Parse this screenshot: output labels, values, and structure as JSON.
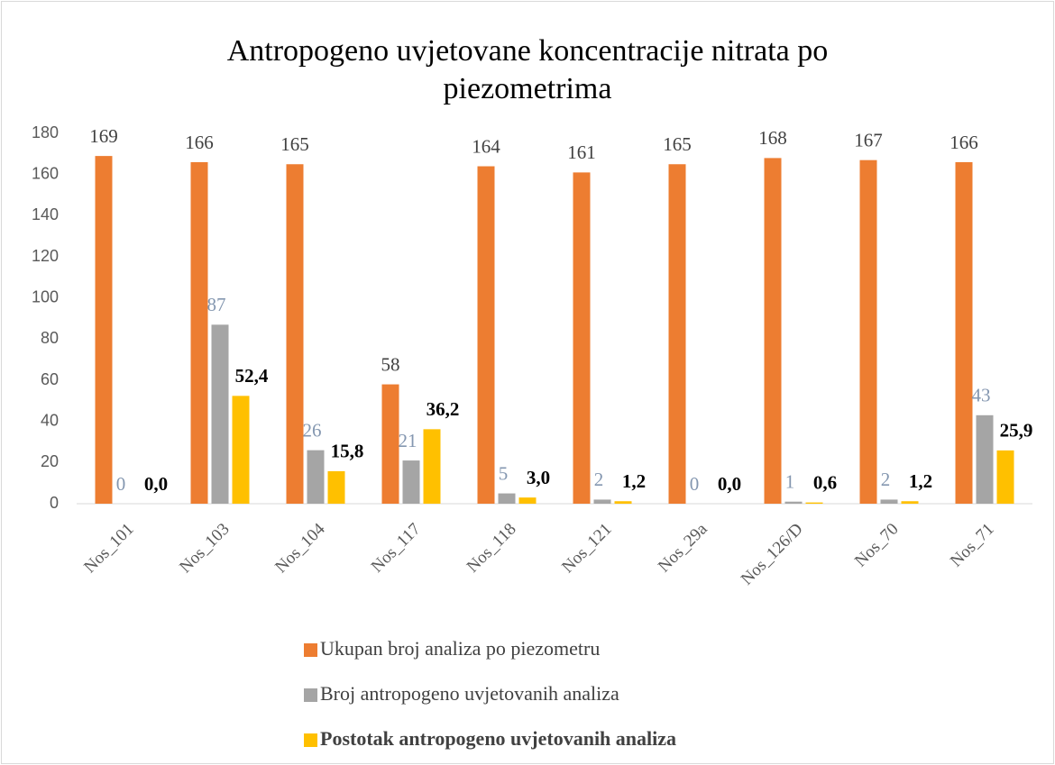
{
  "chart_data": {
    "type": "bar",
    "title": "Antropogeno uvjetovane koncentracije nitrata po piezometrima",
    "categories": [
      "Nos_101",
      "Nos_103",
      "Nos_104",
      "Nos_117",
      "Nos_118",
      "Nos_121",
      "Nos_29a",
      "Nos_126/D",
      "Nos_70",
      "Nos_71"
    ],
    "series": [
      {
        "name": "Ukupan broj analiza po piezometru",
        "color": "#ed7d31",
        "values": [
          169,
          166,
          165,
          58,
          164,
          161,
          165,
          168,
          167,
          166
        ]
      },
      {
        "name": "Broj antropogeno uvjetovanih analiza",
        "color": "#a5a5a5",
        "values": [
          0,
          87,
          26,
          21,
          5,
          2,
          0,
          1,
          2,
          43
        ]
      },
      {
        "name": "Postotak antropogeno uvjetovanih analiza",
        "color": "#ffc000",
        "values": [
          0.0,
          52.4,
          15.8,
          36.2,
          3.0,
          1.2,
          0.0,
          0.6,
          1.2,
          25.9
        ],
        "value_labels": [
          "0,0",
          "52,4",
          "15,8",
          "36,2",
          "3,0",
          "1,2",
          "0,0",
          "0,6",
          "1,2",
          "25,9"
        ]
      }
    ],
    "ylim": [
      0,
      180
    ],
    "yticks": [
      0,
      20,
      40,
      60,
      80,
      100,
      120,
      140,
      160,
      180
    ],
    "grid": false,
    "legend": "bottom"
  }
}
